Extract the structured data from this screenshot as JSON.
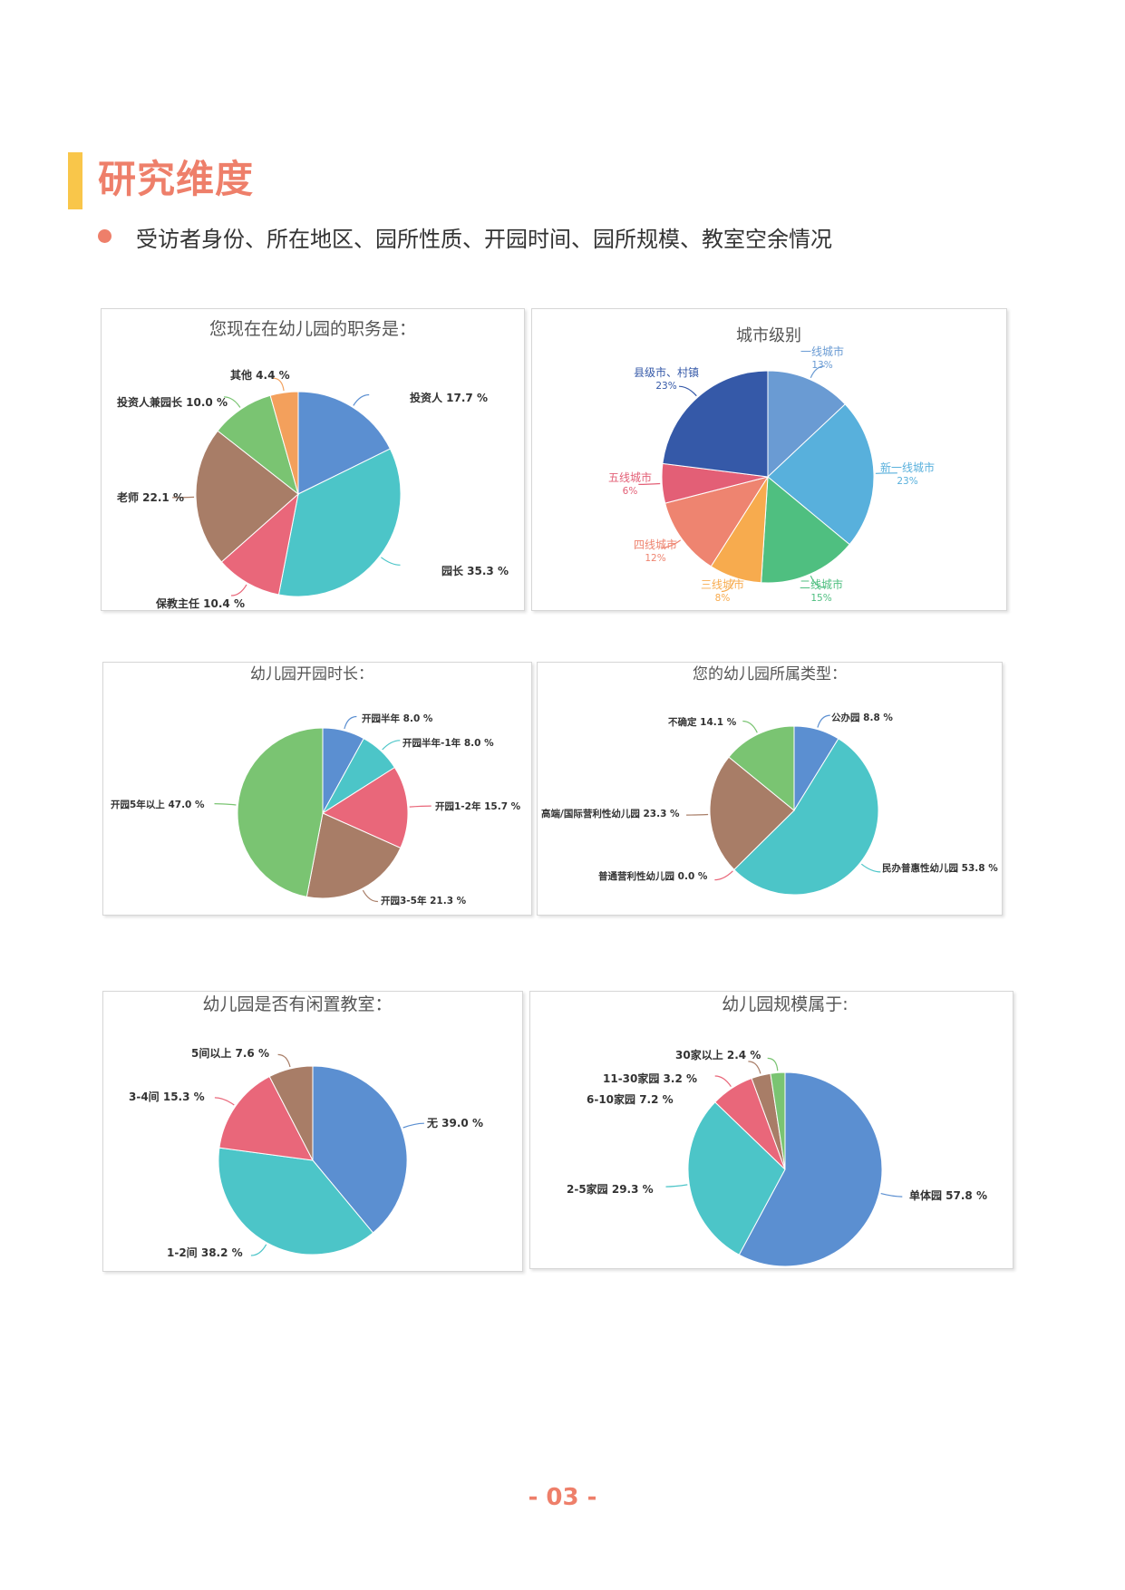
{
  "section": {
    "title": "研究维度"
  },
  "bullet": {
    "text": "受访者身份、所在地区、园所性质、开园时间、园所规模、教室空余情况"
  },
  "page": {
    "number": "- 03 -"
  },
  "chart_data": [
    {
      "id": "role",
      "type": "pie",
      "title": "您现在在幼儿园的职务是：",
      "categories": [
        "投资人",
        "园长",
        "保教主任",
        "老师",
        "投资人兼园长",
        "其他"
      ],
      "values": [
        17.7,
        35.3,
        10.4,
        22.1,
        10.0,
        4.4
      ],
      "labels": [
        "投资人 17.7 %",
        "园长 35.3 %",
        "保教主任 10.4 %",
        "老师 22.1 %",
        "投资人兼园长 10.0 %",
        "其他 4.4 %"
      ],
      "colors": [
        "#5b8fd1",
        "#4cc5c8",
        "#e9677a",
        "#a87d67",
        "#7ac472",
        "#f3a05c"
      ]
    },
    {
      "id": "city",
      "type": "pie",
      "title": "城市级别",
      "categories": [
        "一线城市",
        "新一线城市",
        "二线城市",
        "三线城市",
        "四线城市",
        "五线城市",
        "县级市、村镇"
      ],
      "values": [
        13,
        23,
        15,
        8,
        12,
        6,
        23
      ],
      "labels": [
        "一线城市",
        "新一线城市",
        "二线城市",
        "三线城市",
        "四线城市",
        "五线城市",
        "县级市、村镇"
      ],
      "percent_labels": [
        "13%",
        "23%",
        "15%",
        "8%",
        "12%",
        "6%",
        "23%"
      ],
      "colors": [
        "#6a9bd3",
        "#58b0dc",
        "#4fbf80",
        "#f7ab4e",
        "#ee8470",
        "#e35f76",
        "#3559a8"
      ]
    },
    {
      "id": "age",
      "type": "pie",
      "title": "幼儿园开园时长：",
      "categories": [
        "开园半年",
        "开园半年-1年",
        "开园1-2年",
        "开园3-5年",
        "开园5年以上"
      ],
      "values": [
        8.0,
        8.0,
        15.7,
        21.3,
        47.0
      ],
      "labels": [
        "开园半年 8.0 %",
        "开园半年-1年 8.0 %",
        "开园1-2年 15.7 %",
        "开园3-5年 21.3 %",
        "开园5年以上 47.0 %"
      ],
      "colors": [
        "#5b8fd1",
        "#4cc5c8",
        "#e9677a",
        "#a87d67",
        "#7ac472"
      ]
    },
    {
      "id": "type",
      "type": "pie",
      "title": "您的幼儿园所属类型：",
      "categories": [
        "公办园",
        "民办普惠性幼儿园",
        "普通营利性幼儿园",
        "高端/国际营利性幼儿园",
        "不确定"
      ],
      "values": [
        8.8,
        53.8,
        0.0,
        23.3,
        14.1
      ],
      "labels": [
        "公办园 8.8 %",
        "民办普惠性幼儿园 53.8 %",
        "普通营利性幼儿园 0.0 %",
        "高端/国际营利性幼儿园 23.3 %",
        "不确定 14.1 %"
      ],
      "colors": [
        "#5b8fd1",
        "#4cc5c8",
        "#e9677a",
        "#a87d67",
        "#7ac472"
      ]
    },
    {
      "id": "idle",
      "type": "pie",
      "title": "幼儿园是否有闲置教室：",
      "categories": [
        "无",
        "1-2间",
        "3-4间",
        "5间以上"
      ],
      "values": [
        39.0,
        38.2,
        15.3,
        7.6
      ],
      "labels": [
        "无 39.0 %",
        "1-2间 38.2 %",
        "3-4间 15.3 %",
        "5间以上 7.6 %"
      ],
      "colors": [
        "#5b8fd1",
        "#4cc5c8",
        "#e9677a",
        "#a87d67"
      ]
    },
    {
      "id": "scale",
      "type": "pie",
      "title": "幼儿园规模属于:",
      "categories": [
        "单体园",
        "2-5家园",
        "6-10家园",
        "11-30家园",
        "30家以上"
      ],
      "values": [
        57.8,
        29.3,
        7.2,
        3.2,
        2.4
      ],
      "labels": [
        "单体园 57.8 %",
        "2-5家园 29.3 %",
        "6-10家园 7.2 %",
        "11-30家园 3.2 %",
        "30家以上 2.4 %"
      ],
      "colors": [
        "#5b8fd1",
        "#4cc5c8",
        "#e9677a",
        "#a87d67",
        "#7ac472"
      ]
    }
  ]
}
